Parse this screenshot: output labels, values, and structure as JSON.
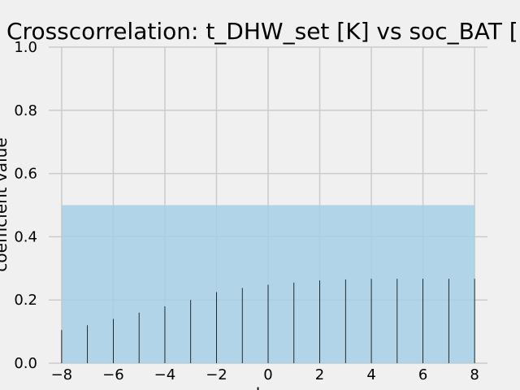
{
  "chart_data": {
    "type": "bar",
    "title": "Crosscorrelation: t_DHW_set [K] vs soc_BAT [",
    "xlabel": "lag",
    "ylabel": "coefficient value",
    "xlim": [
      -8.5,
      8.5
    ],
    "ylim": [
      0,
      1.0
    ],
    "xticks": [
      -8,
      -6,
      -4,
      -2,
      0,
      2,
      4,
      6,
      8
    ],
    "xtick_labels": [
      "−8",
      "−6",
      "−4",
      "−2",
      "0",
      "2",
      "4",
      "6",
      "8"
    ],
    "yticks": [
      0.0,
      0.2,
      0.4,
      0.6,
      0.8,
      1.0
    ],
    "ytick_labels": [
      "0.0",
      "0.2",
      "0.4",
      "0.6",
      "0.8",
      "1.0"
    ],
    "grid": true,
    "confidence_band": {
      "x": [
        -8,
        8
      ],
      "y": [
        0,
        0.5
      ],
      "color": "#a6cfe6"
    },
    "x": [
      -8,
      -7,
      -6,
      -5,
      -4,
      -3,
      -2,
      -1,
      0,
      1,
      2,
      3,
      4,
      5,
      6,
      7,
      8
    ],
    "values": [
      0.105,
      0.12,
      0.14,
      0.16,
      0.18,
      0.2,
      0.225,
      0.238,
      0.248,
      0.255,
      0.262,
      0.265,
      0.267,
      0.267,
      0.267,
      0.267,
      0.267
    ],
    "bar_color": "#000000",
    "grid_color": "#cbcbcb",
    "background_color": "#f0f0f0"
  }
}
